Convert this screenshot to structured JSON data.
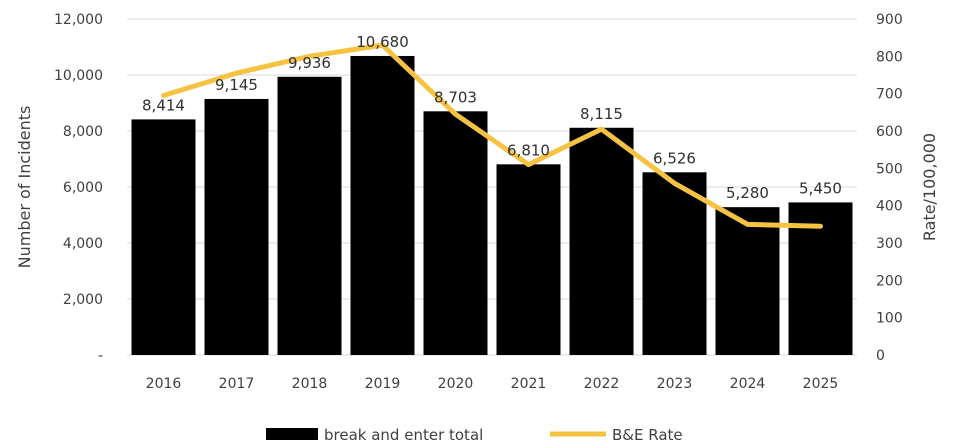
{
  "chart_data": {
    "type": "bar",
    "categories": [
      "2016",
      "2017",
      "2018",
      "2019",
      "2020",
      "2021",
      "2022",
      "2023",
      "2024",
      "2025"
    ],
    "series": [
      {
        "name": "break and enter total",
        "type": "bar",
        "axis": "left",
        "values": [
          8414,
          9145,
          9936,
          10680,
          8703,
          6810,
          8115,
          6526,
          5280,
          5450
        ],
        "labels": [
          "8,414",
          "9,145",
          "9,936",
          "10,680",
          "8,703",
          "6,810",
          "8,115",
          "6,526",
          "5,280",
          "5,450"
        ],
        "color": "#000000"
      },
      {
        "name": "B&E Rate",
        "type": "line",
        "axis": "right",
        "values": [
          695,
          755,
          800,
          830,
          645,
          510,
          605,
          460,
          350,
          345
        ],
        "color": "#F5C242"
      }
    ],
    "ylabel": "Number of Incidents",
    "y2label": "Rate/100,000",
    "ylim": [
      0,
      12000
    ],
    "y2lim": [
      0,
      900
    ],
    "yticks": [
      "-",
      "2,000",
      "4,000",
      "6,000",
      "8,000",
      "10,000",
      "12,000"
    ],
    "y2ticks": [
      "0",
      "100",
      "200",
      "300",
      "400",
      "500",
      "600",
      "700",
      "800",
      "900"
    ],
    "grid": true,
    "legend": "bottom"
  }
}
